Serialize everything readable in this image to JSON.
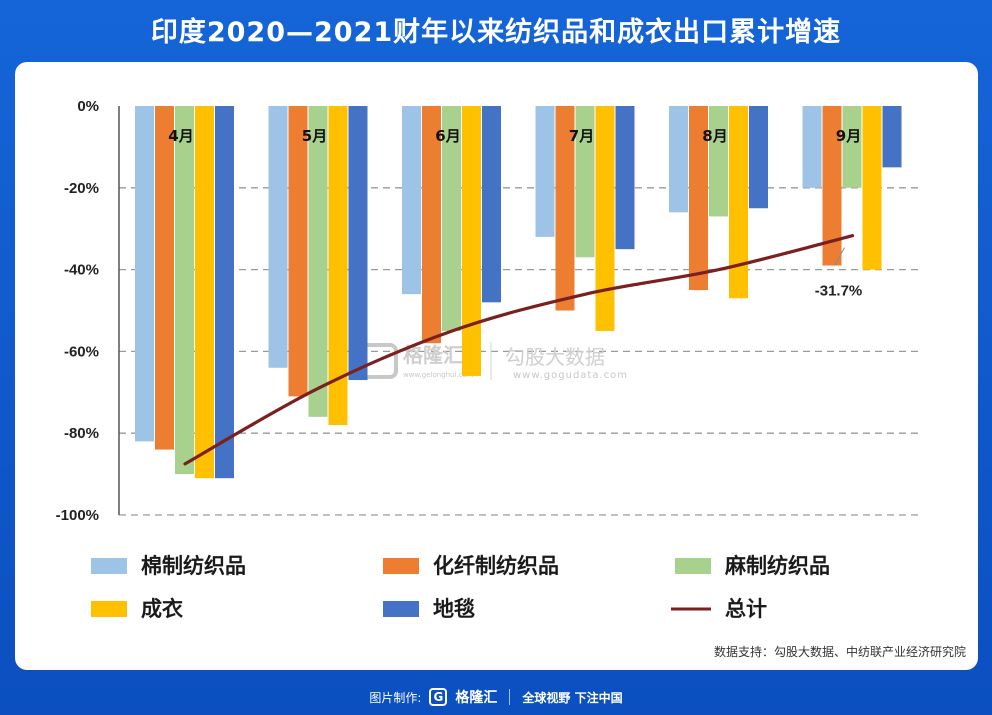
{
  "title": "印度2020—2021财年以来纺织品和成衣出口累计增速",
  "footer": {
    "made_by": "图片制作:",
    "logo_icon": "G",
    "brand": "格隆汇",
    "slogan": "全球视野 下注中国"
  },
  "source": "数据支持：勾股大数据、中纺联产业经济研究院",
  "chart_data": {
    "type": "bar",
    "title": "印度2020—2021财年以来纺织品和成衣出口累计增速",
    "xlabel": "",
    "ylabel": "",
    "ylim": [
      -100,
      0
    ],
    "y_ticks": [
      0,
      -20,
      -40,
      -60,
      -80,
      -100
    ],
    "y_tick_labels": [
      "0%",
      "-20%",
      "-40%",
      "-60%",
      "-80%",
      "-100%"
    ],
    "categories": [
      "4月",
      "5月",
      "6月",
      "7月",
      "8月",
      "9月"
    ],
    "series": [
      {
        "name": "棉制纺织品",
        "color": "#9dc3e6",
        "values": [
          -82,
          -64,
          -46,
          -32,
          -26,
          -20
        ]
      },
      {
        "name": "化纤制纺织品",
        "color": "#ed7d31",
        "values": [
          -84,
          -71,
          -58,
          -50,
          -45,
          -39
        ]
      },
      {
        "name": "麻制纺织品",
        "color": "#a9d18e",
        "values": [
          -90,
          -76,
          -55,
          -37,
          -27,
          -20
        ]
      },
      {
        "name": "成衣",
        "color": "#ffc000",
        "values": [
          -91,
          -78,
          -66,
          -55,
          -47,
          -40
        ]
      },
      {
        "name": "地毯",
        "color": "#4472c4",
        "values": [
          -91,
          -67,
          -48,
          -35,
          -25,
          -15
        ]
      }
    ],
    "line": {
      "name": "总计",
      "color": "#7b1f1f",
      "values": [
        -87.5,
        -69,
        -55,
        -46,
        -40,
        -31.7
      ]
    },
    "annotation": "-31.7%",
    "legend": [
      {
        "name": "棉制纺织品",
        "color": "#9dc3e6",
        "kind": "bar"
      },
      {
        "name": "化纤制纺织品",
        "color": "#ed7d31",
        "kind": "bar"
      },
      {
        "name": "麻制纺织品",
        "color": "#a9d18e",
        "kind": "bar"
      },
      {
        "name": "成衣",
        "color": "#ffc000",
        "kind": "bar"
      },
      {
        "name": "地毯",
        "color": "#4472c4",
        "kind": "bar"
      },
      {
        "name": "总计",
        "color": "#7b1f1f",
        "kind": "line"
      }
    ],
    "watermark": {
      "brand": "格隆汇",
      "brand_url": "www.gelonghui.com",
      "data_brand": "勾股大数据",
      "data_url": "www.gogudata.com"
    }
  }
}
